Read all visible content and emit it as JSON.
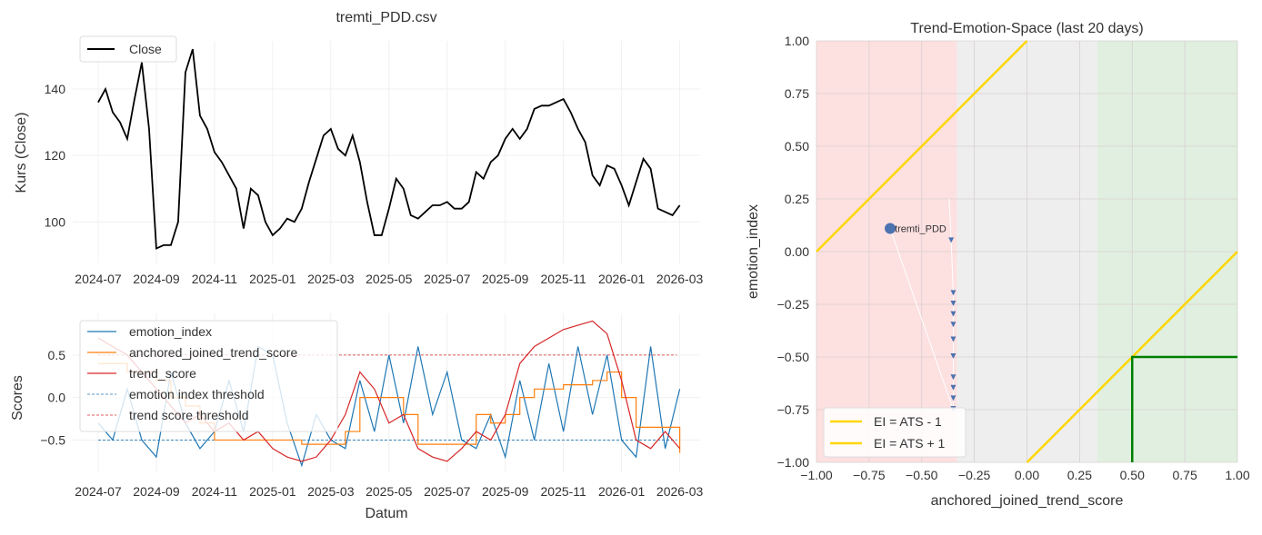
{
  "chart_data": [
    {
      "type": "line",
      "title": "tremti_PDD.csv",
      "xlabel": "",
      "ylabel": "Kurs (Close)",
      "x_unit": "months since 2024-07",
      "x_start": 0,
      "x_step": 0.25,
      "ylim": [
        87.5,
        154.5
      ],
      "xlim": [
        -0.875,
        20.7
      ],
      "yticks": [
        100,
        120,
        140
      ],
      "xticks": [
        {
          "v": 0,
          "label": "2024-07"
        },
        {
          "v": 2,
          "label": "2024-09"
        },
        {
          "v": 4,
          "label": "2024-11"
        },
        {
          "v": 6,
          "label": "2025-01"
        },
        {
          "v": 8,
          "label": "2025-03"
        },
        {
          "v": 10,
          "label": "2025-05"
        },
        {
          "v": 12,
          "label": "2025-07"
        },
        {
          "v": 14,
          "label": "2025-09"
        },
        {
          "v": 16,
          "label": "2025-11"
        },
        {
          "v": 18,
          "label": "2026-01"
        },
        {
          "v": 20,
          "label": "2026-03"
        }
      ],
      "legend": [
        {
          "label": "Close",
          "color": "#000000"
        }
      ],
      "legend_position": "top-left",
      "series": [
        {
          "name": "Close",
          "color": "#000000",
          "values": [
            136,
            140,
            133,
            130,
            125,
            137,
            148,
            128,
            92,
            93,
            93,
            100,
            145,
            152,
            132,
            128,
            121,
            118,
            114,
            110,
            98,
            110,
            108,
            100,
            96,
            98,
            101,
            100,
            104,
            112,
            119,
            126,
            128,
            122,
            120,
            126,
            118,
            106,
            96,
            96,
            104,
            113,
            110,
            102,
            101,
            103,
            105,
            105,
            106,
            104,
            104,
            106,
            115,
            113,
            118,
            120,
            125,
            128,
            125,
            128,
            134,
            135,
            135,
            136,
            137,
            133,
            128,
            124,
            114,
            111,
            117,
            116,
            111,
            105,
            112,
            119,
            116,
            104,
            103,
            102,
            105
          ]
        }
      ]
    },
    {
      "type": "line",
      "title": "",
      "xlabel": "Datum",
      "ylabel": "Scores",
      "x_unit": "months since 2024-07",
      "x_start": 0,
      "x_step": 0.5,
      "ylim": [
        -0.88,
        0.99
      ],
      "xlim": [
        -0.875,
        20.7
      ],
      "yticks": [
        {
          "v": -0.5,
          "label": "−0.5"
        },
        {
          "v": 0,
          "label": "0.0"
        },
        {
          "v": 0.5,
          "label": "0.5"
        }
      ],
      "legend_position": "top-left",
      "series": [
        {
          "name": "emotion_index",
          "color": "#1f77b4",
          "step": false,
          "values": [
            -0.3,
            -0.5,
            0.1,
            -0.5,
            -0.7,
            0.3,
            -0.3,
            -0.6,
            -0.4,
            0.2,
            -0.4,
            0.6,
            0.5,
            -0.3,
            -0.8,
            -0.2,
            -0.5,
            -0.6,
            0.2,
            -0.4,
            0.5,
            -0.3,
            0.6,
            -0.2,
            0.3,
            -0.5,
            -0.6,
            -0.2,
            -0.7,
            0.2,
            -0.5,
            0.4,
            -0.4,
            0.6,
            -0.2,
            0.5,
            -0.5,
            -0.7,
            0.6,
            -0.6,
            0.1
          ]
        },
        {
          "name": "anchored_joined_trend_score",
          "color": "#ff7f0e",
          "step": true,
          "values": [
            0.4,
            0.4,
            0.3,
            0.3,
            0.2,
            0.0,
            -0.1,
            -0.3,
            -0.5,
            -0.5,
            -0.5,
            -0.5,
            -0.5,
            -0.5,
            -0.55,
            -0.55,
            -0.55,
            -0.4,
            0.0,
            0.0,
            0.0,
            -0.2,
            -0.55,
            -0.55,
            -0.55,
            -0.55,
            -0.2,
            -0.3,
            -0.2,
            0.0,
            0.1,
            0.1,
            0.15,
            0.15,
            0.2,
            0.3,
            0.0,
            -0.35,
            -0.35,
            -0.35,
            -0.65
          ]
        },
        {
          "name": "trend_score",
          "color": "#d62728",
          "step": false,
          "values": [
            0.7,
            0.6,
            0.5,
            0.3,
            0.1,
            -0.1,
            -0.3,
            -0.2,
            -0.4,
            -0.3,
            -0.5,
            -0.4,
            -0.6,
            -0.7,
            -0.75,
            -0.7,
            -0.5,
            -0.2,
            0.3,
            0.1,
            -0.3,
            -0.2,
            -0.6,
            -0.7,
            -0.75,
            -0.6,
            -0.4,
            -0.5,
            -0.2,
            0.4,
            0.6,
            0.7,
            0.8,
            0.85,
            0.9,
            0.75,
            0.2,
            -0.5,
            -0.6,
            -0.4,
            -0.6
          ]
        }
      ],
      "thresholds": [
        {
          "name": "emotion index threshold",
          "color": "#1f77b4",
          "y": -0.5
        },
        {
          "name": "trend score threshold",
          "color": "#d62728",
          "y": 0.5
        }
      ]
    },
    {
      "type": "scatter",
      "title": "Trend-Emotion-Space (last 20 days)",
      "xlabel": "anchored_joined_trend_score",
      "ylabel": "emotion_index",
      "xlim": [
        -1,
        1
      ],
      "ylim": [
        -1,
        1
      ],
      "ticks": [
        {
          "v": -1,
          "label": "−1.00"
        },
        {
          "v": -0.75,
          "label": "−0.75"
        },
        {
          "v": -0.5,
          "label": "−0.50"
        },
        {
          "v": -0.25,
          "label": "−0.25"
        },
        {
          "v": 0,
          "label": "0.00"
        },
        {
          "v": 0.25,
          "label": "0.25"
        },
        {
          "v": 0.5,
          "label": "0.50"
        },
        {
          "v": 0.75,
          "label": "0.75"
        },
        {
          "v": 1,
          "label": "1.00"
        }
      ],
      "regions": [
        {
          "from": -1,
          "to": -0.333,
          "color": "#fde0e0"
        },
        {
          "from": -0.333,
          "to": 0.333,
          "color": "#eeeeee"
        },
        {
          "from": 0.333,
          "to": 1,
          "color": "#e0efe0"
        }
      ],
      "lines": [
        {
          "label": "EI = ATS - 1",
          "color": "#ffd700",
          "offset": -1
        },
        {
          "label": "EI = ATS + 1",
          "color": "#ffd700",
          "offset": 1
        }
      ],
      "target_box": {
        "color": "#008000",
        "x": 0.5,
        "y": -0.5
      },
      "trajectory": [
        [
          -0.37,
          0.25
        ],
        [
          -0.36,
          0.05
        ],
        [
          -0.35,
          -0.2
        ],
        [
          -0.35,
          -0.25
        ],
        [
          -0.35,
          -0.3
        ],
        [
          -0.35,
          -0.35
        ],
        [
          -0.35,
          -0.42
        ],
        [
          -0.35,
          -0.5
        ],
        [
          -0.35,
          -0.6
        ],
        [
          -0.35,
          -0.65
        ],
        [
          -0.35,
          -0.7
        ],
        [
          -0.35,
          -0.75
        ],
        [
          -0.65,
          0.11
        ]
      ],
      "point": {
        "label": "tremti_PDD",
        "x": -0.65,
        "y": 0.11,
        "color": "#4c72b0"
      },
      "legend_position": "lower-left"
    }
  ]
}
